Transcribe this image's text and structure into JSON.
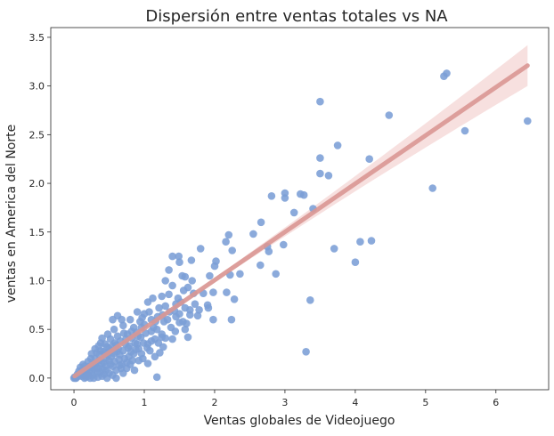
{
  "chart_data": {
    "type": "scatter",
    "title": "Dispersión entre ventas totales vs NA",
    "xlabel": "Ventas globales de Videojuego",
    "ylabel": "ventas en America del Norte",
    "xlim": [
      -0.33,
      6.75
    ],
    "ylim": [
      -0.12,
      3.6
    ],
    "xticks": [
      0,
      1,
      2,
      3,
      4,
      5,
      6
    ],
    "yticks": [
      0.0,
      0.5,
      1.0,
      1.5,
      2.0,
      2.5,
      3.0,
      3.5
    ],
    "ytick_labels": [
      "0.0",
      "0.5",
      "1.0",
      "1.5",
      "2.0",
      "2.5",
      "3.0",
      "3.5"
    ],
    "grid": false,
    "colors": {
      "points": "#7b9ed6",
      "regression_line": "#d99793",
      "confidence_band": "#f4d3d1"
    },
    "regression": {
      "x_start": 0.01,
      "x_end": 6.45,
      "y_start": 0.02,
      "y_end": 3.21,
      "ci_halfwidth_end": 0.21
    },
    "points": [
      [
        5.3,
        3.13
      ],
      [
        5.26,
        3.1
      ],
      [
        6.45,
        2.64
      ],
      [
        5.56,
        2.54
      ],
      [
        4.48,
        2.7
      ],
      [
        3.5,
        2.84
      ],
      [
        5.1,
        1.95
      ],
      [
        4.2,
        2.25
      ],
      [
        3.75,
        2.39
      ],
      [
        3.5,
        2.26
      ],
      [
        3.5,
        2.1
      ],
      [
        3.62,
        2.08
      ],
      [
        4.0,
        1.19
      ],
      [
        4.23,
        1.41
      ],
      [
        4.07,
        1.4
      ],
      [
        3.7,
        1.33
      ],
      [
        3.4,
        1.74
      ],
      [
        3.27,
        1.88
      ],
      [
        3.22,
        1.89
      ],
      [
        3.13,
        1.7
      ],
      [
        3.0,
        1.9
      ],
      [
        3.0,
        1.85
      ],
      [
        2.81,
        1.87
      ],
      [
        2.66,
        1.6
      ],
      [
        2.55,
        1.48
      ],
      [
        2.75,
        1.35
      ],
      [
        2.98,
        1.37
      ],
      [
        2.87,
        1.07
      ],
      [
        3.36,
        0.8
      ],
      [
        3.3,
        0.27
      ],
      [
        2.2,
        1.47
      ],
      [
        2.16,
        1.4
      ],
      [
        2.25,
        1.31
      ],
      [
        2.36,
        1.07
      ],
      [
        2.28,
        0.81
      ],
      [
        2.24,
        0.6
      ],
      [
        2.02,
        1.2
      ],
      [
        2.0,
        1.15
      ],
      [
        1.93,
        1.05
      ],
      [
        2.22,
        1.06
      ],
      [
        2.17,
        0.88
      ],
      [
        1.98,
        0.88
      ],
      [
        1.91,
        0.72
      ],
      [
        2.65,
        1.16
      ],
      [
        2.77,
        1.3
      ],
      [
        1.8,
        1.33
      ],
      [
        1.67,
        1.21
      ],
      [
        1.58,
        1.04
      ],
      [
        1.62,
        0.93
      ],
      [
        1.49,
        1.25
      ],
      [
        1.4,
        1.25
      ],
      [
        1.5,
        1.19
      ],
      [
        1.35,
        1.11
      ],
      [
        1.54,
        1.05
      ],
      [
        1.68,
        1.0
      ],
      [
        1.3,
        1.0
      ],
      [
        1.4,
        0.95
      ],
      [
        1.48,
        0.82
      ],
      [
        1.58,
        0.72
      ],
      [
        1.72,
        0.76
      ],
      [
        1.84,
        0.87
      ],
      [
        1.98,
        0.6
      ],
      [
        1.76,
        0.64
      ],
      [
        1.65,
        0.7
      ],
      [
        1.55,
        0.58
      ],
      [
        1.5,
        0.57
      ],
      [
        1.3,
        0.74
      ],
      [
        1.25,
        0.84
      ],
      [
        1.21,
        0.72
      ],
      [
        1.28,
        0.58
      ],
      [
        1.38,
        0.52
      ],
      [
        1.58,
        0.5
      ],
      [
        1.4,
        0.4
      ],
      [
        1.19,
        0.63
      ],
      [
        1.12,
        0.82
      ],
      [
        1.05,
        0.78
      ],
      [
        1.18,
        0.5
      ],
      [
        1.1,
        0.6
      ],
      [
        1.0,
        0.55
      ],
      [
        1.02,
        0.46
      ],
      [
        0.97,
        0.62
      ],
      [
        0.9,
        0.68
      ],
      [
        0.85,
        0.52
      ],
      [
        0.82,
        0.41
      ],
      [
        1.3,
        0.41
      ],
      [
        1.27,
        0.32
      ],
      [
        1.15,
        0.22
      ],
      [
        1.1,
        0.38
      ],
      [
        1.2,
        0.36
      ],
      [
        1.25,
        0.45
      ],
      [
        1.44,
        0.48
      ],
      [
        1.62,
        0.42
      ],
      [
        1.18,
        0.01
      ],
      [
        0.85,
        0.25
      ],
      [
        0.79,
        0.33
      ],
      [
        0.9,
        0.35
      ],
      [
        0.95,
        0.42
      ],
      [
        0.67,
        0.1
      ],
      [
        0.73,
        0.35
      ],
      [
        0.76,
        0.45
      ],
      [
        0.7,
        0.54
      ],
      [
        0.8,
        0.6
      ],
      [
        0.68,
        0.6
      ],
      [
        0.62,
        0.64
      ],
      [
        0.55,
        0.6
      ],
      [
        0.57,
        0.5
      ],
      [
        0.62,
        0.43
      ],
      [
        0.6,
        0.34
      ],
      [
        0.57,
        0.25
      ],
      [
        0.52,
        0.28
      ],
      [
        0.52,
        0.4
      ],
      [
        0.48,
        0.45
      ],
      [
        0.44,
        0.35
      ],
      [
        0.44,
        0.25
      ],
      [
        0.42,
        0.16
      ],
      [
        0.46,
        0.08
      ],
      [
        0.5,
        0.18
      ],
      [
        0.55,
        0.12
      ],
      [
        0.38,
        0.36
      ],
      [
        0.38,
        0.28
      ],
      [
        0.36,
        0.18
      ],
      [
        0.35,
        0.1
      ],
      [
        0.32,
        0.26
      ],
      [
        0.3,
        0.2
      ],
      [
        0.28,
        0.14
      ],
      [
        0.26,
        0.07
      ],
      [
        0.33,
        0.05
      ],
      [
        0.4,
        0.02
      ],
      [
        0.24,
        0.2
      ],
      [
        0.22,
        0.12
      ],
      [
        0.2,
        0.17
      ],
      [
        0.18,
        0.1
      ],
      [
        0.16,
        0.06
      ],
      [
        0.14,
        0.03
      ],
      [
        0.12,
        0.08
      ],
      [
        0.1,
        0.05
      ],
      [
        0.08,
        0.03
      ],
      [
        0.06,
        0.02
      ],
      [
        0.04,
        0.01
      ],
      [
        0.02,
        0.0
      ],
      [
        0.0,
        0.0
      ],
      [
        0.01,
        0.01
      ],
      [
        0.03,
        0.0
      ],
      [
        0.05,
        0.04
      ],
      [
        0.07,
        0.07
      ],
      [
        0.09,
        0.11
      ],
      [
        0.11,
        0.02
      ],
      [
        0.13,
        0.14
      ],
      [
        0.15,
        0.12
      ],
      [
        0.17,
        0.01
      ],
      [
        0.19,
        0.04
      ],
      [
        0.21,
        0.07
      ],
      [
        0.23,
        0.0
      ],
      [
        0.25,
        0.11
      ],
      [
        0.27,
        0.03
      ],
      [
        0.29,
        0.1
      ],
      [
        0.31,
        0.15
      ],
      [
        0.34,
        0.01
      ],
      [
        0.37,
        0.06
      ],
      [
        0.41,
        0.09
      ],
      [
        0.43,
        0.04
      ],
      [
        0.47,
        0.0
      ],
      [
        0.5,
        0.05
      ],
      [
        0.53,
        0.22
      ],
      [
        0.58,
        0.17
      ],
      [
        0.65,
        0.24
      ],
      [
        0.63,
        0.3
      ],
      [
        0.66,
        0.38
      ],
      [
        0.7,
        0.28
      ],
      [
        0.72,
        0.2
      ],
      [
        0.75,
        0.16
      ],
      [
        0.78,
        0.22
      ],
      [
        0.83,
        0.18
      ],
      [
        0.88,
        0.29
      ],
      [
        0.92,
        0.3
      ],
      [
        0.96,
        0.25
      ],
      [
        0.99,
        0.36
      ],
      [
        1.04,
        0.31
      ],
      [
        1.08,
        0.28
      ],
      [
        0.6,
        0.0
      ],
      [
        0.45,
        0.2
      ],
      [
        0.3,
        0.3
      ],
      [
        0.25,
        0.25
      ],
      [
        0.35,
        0.33
      ],
      [
        0.4,
        0.41
      ],
      [
        0.45,
        0.12
      ],
      [
        0.55,
        0.03
      ],
      [
        0.6,
        0.08
      ],
      [
        0.65,
        0.13
      ],
      [
        0.7,
        0.05
      ],
      [
        0.75,
        0.1
      ],
      [
        0.8,
        0.14
      ],
      [
        0.86,
        0.08
      ],
      [
        0.92,
        0.18
      ],
      [
        0.98,
        0.2
      ],
      [
        1.05,
        0.15
      ],
      [
        1.1,
        0.48
      ],
      [
        0.82,
        0.48
      ],
      [
        0.74,
        0.4
      ],
      [
        0.58,
        0.36
      ],
      [
        0.47,
        0.32
      ],
      [
        0.5,
        0.3
      ],
      [
        0.15,
        0.0
      ],
      [
        0.2,
        0.02
      ],
      [
        0.28,
        0.0
      ],
      [
        0.32,
        0.11
      ],
      [
        0.36,
        0.24
      ],
      [
        0.39,
        0.15
      ],
      [
        0.42,
        0.27
      ],
      [
        0.48,
        0.24
      ],
      [
        0.52,
        0.14
      ],
      [
        0.54,
        0.33
      ],
      [
        0.61,
        0.27
      ],
      [
        0.64,
        0.19
      ],
      [
        0.68,
        0.14
      ],
      [
        0.71,
        0.46
      ],
      [
        0.77,
        0.31
      ],
      [
        0.81,
        0.27
      ],
      [
        0.87,
        0.36
      ],
      [
        0.91,
        0.43
      ],
      [
        0.94,
        0.58
      ],
      [
        1.0,
        0.66
      ],
      [
        1.07,
        0.68
      ],
      [
        1.13,
        0.52
      ],
      [
        1.16,
        0.58
      ],
      [
        1.22,
        0.26
      ],
      [
        1.26,
        0.65
      ],
      [
        1.33,
        0.6
      ],
      [
        1.36,
        0.68
      ],
      [
        1.45,
        0.63
      ],
      [
        1.52,
        0.78
      ],
      [
        1.56,
        0.9
      ],
      [
        1.6,
        0.56
      ],
      [
        1.7,
        0.87
      ],
      [
        1.45,
        0.76
      ],
      [
        1.35,
        0.86
      ],
      [
        1.43,
        0.69
      ],
      [
        1.5,
        0.66
      ],
      [
        1.65,
        0.65
      ],
      [
        1.9,
        0.75
      ],
      [
        1.78,
        0.7
      ],
      [
        1.25,
        0.42
      ],
      [
        1.15,
        0.4
      ],
      [
        1.05,
        0.35
      ],
      [
        0.96,
        0.52
      ],
      [
        0.89,
        0.47
      ]
    ]
  }
}
